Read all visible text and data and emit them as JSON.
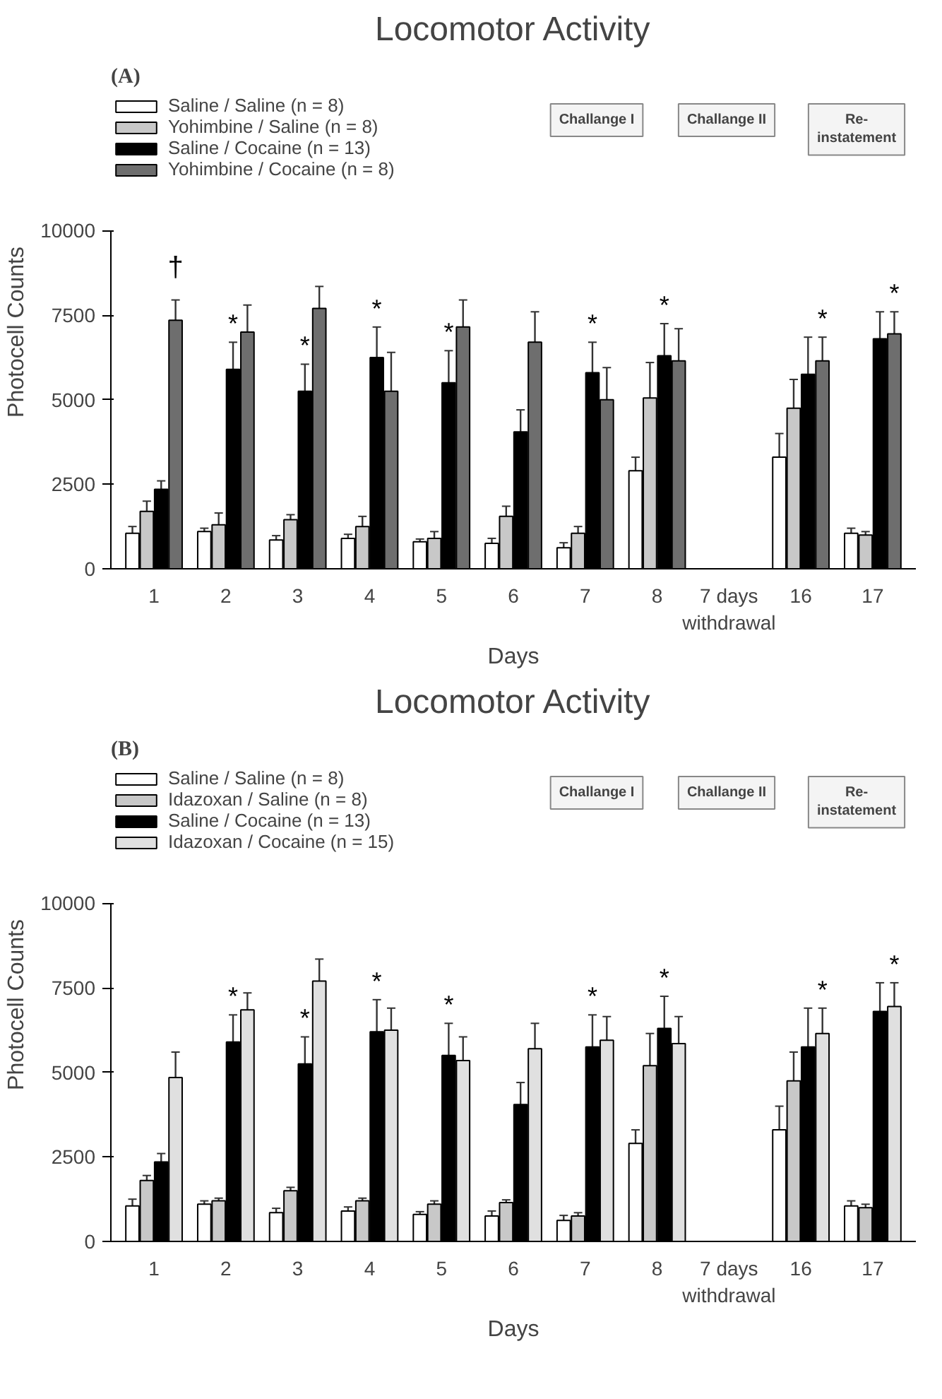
{
  "chart_data": [
    {
      "type": "bar",
      "title": "Locomotor Activity",
      "xlabel": "Days",
      "ylabel": "Photocell Counts",
      "categories": [
        "1",
        "2",
        "3",
        "4",
        "5",
        "6",
        "7",
        "8",
        "7 days\nwithdrawal",
        "16",
        "17"
      ],
      "ylim": [
        0,
        10000
      ],
      "yticks": [
        0,
        2500,
        5000,
        7500,
        10000
      ],
      "grid": false,
      "legend": "top left",
      "series": [
        {
          "name": "Saline / Saline (n = 8)",
          "color": "#ffffff",
          "values": [
            1050,
            1100,
            850,
            900,
            800,
            750,
            620,
            2900,
            null,
            3300,
            1050
          ],
          "errors": [
            [
              1050,
              1250
            ],
            [
              1100,
              1200
            ],
            [
              850,
              980
            ],
            [
              900,
              1020
            ],
            [
              800,
              880
            ],
            [
              750,
              900
            ],
            [
              620,
              770
            ],
            [
              2900,
              3300
            ],
            null,
            [
              3300,
              4000
            ],
            [
              1050,
              1200
            ]
          ]
        },
        {
          "name": "Yohimbine / Saline (n = 8)",
          "color": "#c8c8c8",
          "values": [
            1700,
            1300,
            1450,
            1250,
            900,
            1550,
            1050,
            5050,
            null,
            4750,
            1000
          ],
          "errors": [
            [
              1700,
              2000
            ],
            [
              1300,
              1650
            ],
            [
              1450,
              1600
            ],
            [
              1250,
              1550
            ],
            [
              900,
              1100
            ],
            [
              1550,
              1850
            ],
            [
              1050,
              1250
            ],
            [
              5050,
              6100
            ],
            null,
            [
              4750,
              5600
            ],
            [
              1000,
              1100
            ]
          ]
        },
        {
          "name": "Saline / Cocaine (n = 13)",
          "color": "#000000",
          "values": [
            2350,
            5900,
            5250,
            6250,
            5500,
            4050,
            5800,
            6300,
            null,
            5750,
            6800
          ],
          "errors": [
            [
              2350,
              2600
            ],
            [
              5900,
              6700
            ],
            [
              5250,
              6050
            ],
            [
              6250,
              7150
            ],
            [
              5500,
              6450
            ],
            [
              4050,
              4700
            ],
            [
              5800,
              6700
            ],
            [
              6300,
              7250
            ],
            null,
            [
              5750,
              6850
            ],
            [
              6800,
              7600
            ]
          ]
        },
        {
          "name": "Yohimbine / Cocaine (n = 8)",
          "color": "#6e6e6e",
          "values": [
            7350,
            7000,
            7700,
            5250,
            7150,
            6700,
            5000,
            6150,
            null,
            6150,
            6950
          ],
          "errors": [
            [
              7350,
              7950
            ],
            [
              7000,
              7800
            ],
            [
              7700,
              8350
            ],
            [
              5250,
              6400
            ],
            [
              7150,
              7950
            ],
            [
              6700,
              7600
            ],
            [
              5000,
              5950
            ],
            [
              6150,
              7100
            ],
            null,
            [
              6150,
              6850
            ],
            [
              6950,
              7600
            ]
          ]
        }
      ],
      "annotations": [
        "(A)",
        "Challange I",
        "Challange II",
        "Re-\ninstatement",
        "†",
        {
          "text": "*",
          "x": "2",
          "y": 6700
        },
        {
          "text": "*",
          "x": "3",
          "y": 6050
        },
        {
          "text": "*",
          "x": "4",
          "y": 7150
        },
        {
          "text": "*",
          "x": "5",
          "y": 6450
        },
        {
          "text": "*",
          "x": "7",
          "y": 6700
        },
        {
          "text": "*",
          "x": "8",
          "y": 7250
        },
        {
          "text": "*",
          "x": "16",
          "y": 6850
        },
        {
          "text": "*",
          "x": "17",
          "y": 7600
        }
      ]
    },
    {
      "type": "bar",
      "title": "Locomotor Activity",
      "xlabel": "Days",
      "ylabel": "Photocell Counts",
      "categories": [
        "1",
        "2",
        "3",
        "4",
        "5",
        "6",
        "7",
        "8",
        "7 days\nwithdrawal",
        "16",
        "17"
      ],
      "ylim": [
        0,
        10000
      ],
      "yticks": [
        0,
        2500,
        5000,
        7500,
        10000
      ],
      "grid": false,
      "legend": "top left",
      "series": [
        {
          "name": "Saline / Saline (n = 8)",
          "color": "#ffffff",
          "values": [
            1050,
            1100,
            850,
            900,
            800,
            750,
            620,
            2900,
            null,
            3300,
            1050
          ],
          "errors": [
            [
              1050,
              1250
            ],
            [
              1100,
              1200
            ],
            [
              850,
              980
            ],
            [
              900,
              1020
            ],
            [
              800,
              880
            ],
            [
              750,
              900
            ],
            [
              620,
              770
            ],
            [
              2900,
              3300
            ],
            null,
            [
              3300,
              4000
            ],
            [
              1050,
              1200
            ]
          ]
        },
        {
          "name": "Idazoxan / Saline (n = 8)",
          "color": "#c8c8c8",
          "values": [
            1800,
            1200,
            1500,
            1200,
            1100,
            1150,
            750,
            5200,
            null,
            4750,
            1000
          ],
          "errors": [
            [
              1800,
              1950
            ],
            [
              1200,
              1280
            ],
            [
              1500,
              1600
            ],
            [
              1200,
              1280
            ],
            [
              1100,
              1200
            ],
            [
              1150,
              1230
            ],
            [
              750,
              850
            ],
            [
              5200,
              6150
            ],
            null,
            [
              4750,
              5600
            ],
            [
              1000,
              1100
            ]
          ]
        },
        {
          "name": "Saline / Cocaine (n = 13)",
          "color": "#000000",
          "values": [
            2350,
            5900,
            5250,
            6200,
            5500,
            4050,
            5750,
            6300,
            null,
            5750,
            6800
          ],
          "errors": [
            [
              2350,
              2600
            ],
            [
              5900,
              6700
            ],
            [
              5250,
              6050
            ],
            [
              6200,
              7150
            ],
            [
              5500,
              6450
            ],
            [
              4050,
              4700
            ],
            [
              5750,
              6700
            ],
            [
              6300,
              7250
            ],
            null,
            [
              5750,
              6900
            ],
            [
              6800,
              7650
            ]
          ]
        },
        {
          "name": "Idazoxan / Cocaine (n = 15)",
          "color": "#e0e0e0",
          "values": [
            4850,
            6850,
            7700,
            6250,
            5350,
            5700,
            5950,
            5850,
            null,
            6150,
            6950
          ],
          "errors": [
            [
              4850,
              5600
            ],
            [
              6850,
              7350
            ],
            [
              7700,
              8350
            ],
            [
              6250,
              6900
            ],
            [
              5350,
              6050
            ],
            [
              5700,
              6450
            ],
            [
              5950,
              6650
            ],
            [
              5850,
              6650
            ],
            null,
            [
              6150,
              6900
            ],
            [
              6950,
              7650
            ]
          ]
        }
      ],
      "annotations": [
        "(B)",
        "Challange I",
        "Challange II",
        "Re-\ninstatement",
        {
          "text": "*",
          "x": "2",
          "y": 6700
        },
        {
          "text": "*",
          "x": "3",
          "y": 6050
        },
        {
          "text": "*",
          "x": "4",
          "y": 7150
        },
        {
          "text": "*",
          "x": "5",
          "y": 6450
        },
        {
          "text": "*",
          "x": "7",
          "y": 6700
        },
        {
          "text": "*",
          "x": "8",
          "y": 7250
        },
        {
          "text": "*",
          "x": "16",
          "y": 6900
        },
        {
          "text": "*",
          "x": "17",
          "y": 7650
        }
      ]
    }
  ]
}
